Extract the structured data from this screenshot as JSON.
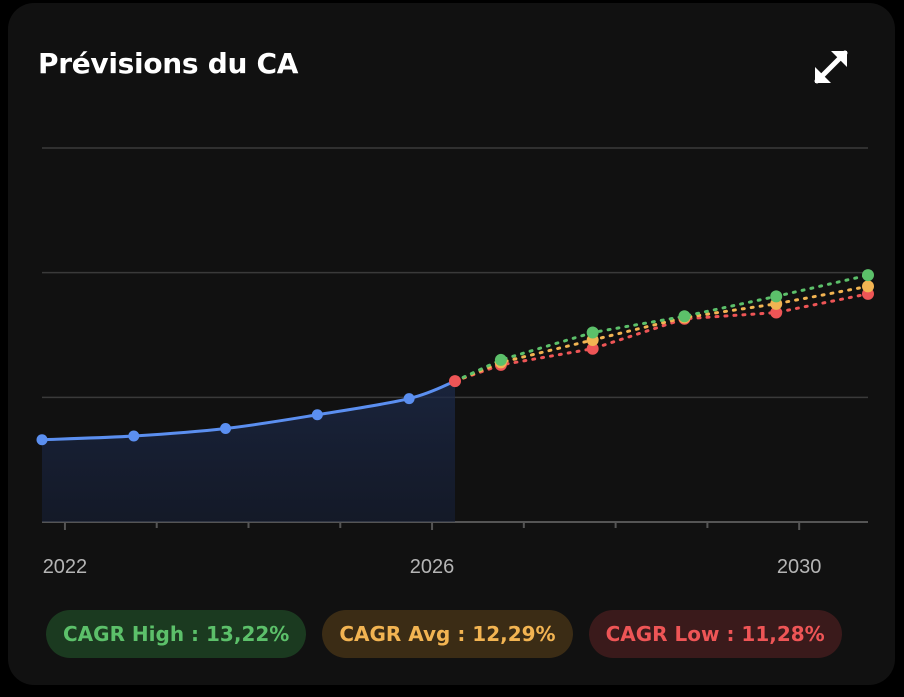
{
  "card": {
    "title": "Prévisions du CA",
    "expand_icon": "expand-arrows-icon"
  },
  "colors": {
    "actual": "#5b8ff0",
    "high": "#5cc06a",
    "avg": "#f2b452",
    "low": "#ee5556",
    "grid": "#3a3a3a",
    "axis_text": "#b5b5b5"
  },
  "chart_data": {
    "type": "line",
    "title": "Prévisions du CA",
    "x_ticks": [
      2022,
      2026,
      2030
    ],
    "x_tick_labels": [
      "2022",
      "2026",
      "2030"
    ],
    "xlim": [
      2021.75,
      2030.75
    ],
    "ylim": [
      0,
      300
    ],
    "y_gridlines": [
      0,
      100,
      200,
      300
    ],
    "grid": true,
    "actual": {
      "x": [
        2021.75,
        2022.75,
        2023.75,
        2024.75,
        2025.75,
        2026.25
      ],
      "y": [
        66,
        69,
        75,
        86,
        99,
        113
      ]
    },
    "forecast": [
      {
        "name": "high",
        "x": [
          2026.25,
          2026.75,
          2027.75,
          2028.75,
          2029.75,
          2030.75
        ],
        "y": [
          113,
          130,
          152,
          165,
          181,
          198
        ]
      },
      {
        "name": "avg",
        "x": [
          2026.25,
          2026.75,
          2027.75,
          2028.75,
          2029.75,
          2030.75
        ],
        "y": [
          113,
          128,
          146,
          164,
          175,
          189
        ]
      },
      {
        "name": "low",
        "x": [
          2026.25,
          2026.75,
          2027.75,
          2028.75,
          2029.75,
          2030.75
        ],
        "y": [
          113,
          126,
          139,
          163,
          168,
          183
        ]
      }
    ]
  },
  "legend": {
    "high": "CAGR High : 13,22%",
    "avg": "CAGR Avg : 12,29%",
    "low": "CAGR Low : 11,28%"
  }
}
